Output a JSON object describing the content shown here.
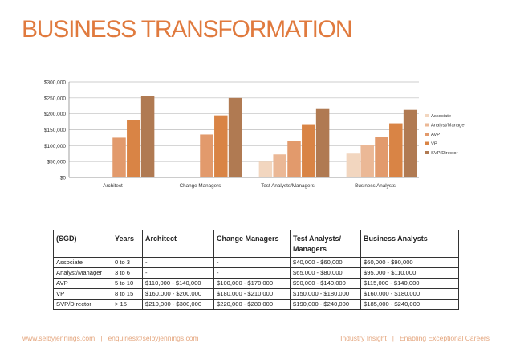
{
  "page": {
    "title": "BUSINESS TRANSFORMATION"
  },
  "chart_data": {
    "type": "bar",
    "categories": [
      "Architect",
      "Change Managers",
      "Test Analysts/Managers",
      "Business Analysts"
    ],
    "series": [
      {
        "name": "Associate",
        "values": [
          0,
          0,
          50000,
          75000
        ],
        "color": "#f2d6bf"
      },
      {
        "name": "Analyst/Manager",
        "values": [
          0,
          0,
          72500,
          102500
        ],
        "color": "#ebb896"
      },
      {
        "name": "AVP",
        "values": [
          125000,
          135000,
          115000,
          127500
        ],
        "color": "#e29a6c"
      },
      {
        "name": "VP",
        "values": [
          180000,
          195000,
          165000,
          170000
        ],
        "color": "#d98445"
      },
      {
        "name": "SVP/Director",
        "values": [
          255000,
          250000,
          215000,
          212500
        ],
        "color": "#b07a52"
      }
    ],
    "y_ticks": [
      "$0",
      "$50,000",
      "$100,000",
      "$150,000",
      "$200,000",
      "$250,000",
      "$300,000"
    ],
    "ylim": [
      0,
      300000
    ],
    "grid": true,
    "legend": "right"
  },
  "table": {
    "headers": [
      "(SGD)",
      "Years",
      "Architect",
      "Change Managers",
      "Test Analysts/ Managers",
      "Business Analysts"
    ],
    "rows": [
      [
        "Associate",
        "0 to 3",
        "-",
        "-",
        "$40,000 - $60,000",
        "$60,000 - $90,000"
      ],
      [
        "Analyst/Manager",
        "3 to 6",
        "-",
        "-",
        "$65,000 - $80,000",
        "$95,000 - $110,000"
      ],
      [
        "AVP",
        "5 to 10",
        "$110,000 - $140,000",
        "$100,000 - $170,000",
        "$90,000 - $140,000",
        "$115,000 - $140,000"
      ],
      [
        "VP",
        "8 to 15",
        "$160,000 - $200,000",
        "$180,000 - $210,000",
        "$150,000 - $180,000",
        "$160,000 - $180,000"
      ],
      [
        "SVP/Director",
        "> 15",
        "$210,000 - $300,000",
        "$220,000 - $280,000",
        "$190,000 - $240,000",
        "$185,000 - $240,000"
      ]
    ]
  },
  "footer": {
    "website": "www.selbyjennings.com",
    "email": "enquiries@selbyjennings.com",
    "separator": "|",
    "tag_left": "Industry Insight",
    "tag_right": "Enabling Exceptional Careers"
  }
}
